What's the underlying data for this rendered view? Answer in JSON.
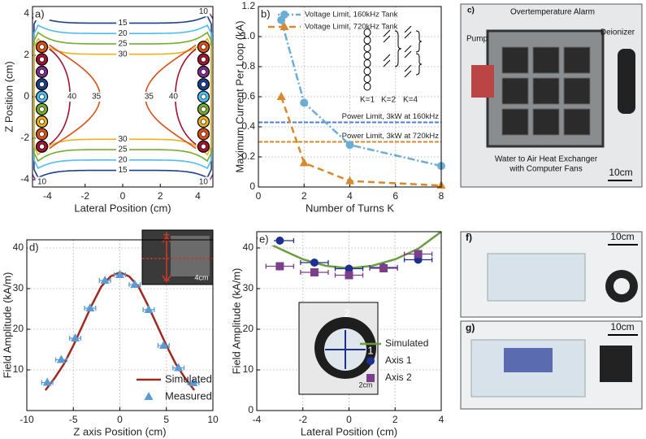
{
  "chart_data": [
    {
      "type": "contour",
      "panel": "a)",
      "xlabel": "Lateral Position (cm)",
      "ylabel": "Z Position (cm)",
      "xlim": [
        -4.8,
        4.8
      ],
      "ylim": [
        -4.35,
        4.35
      ],
      "xticks": [
        -4,
        -2,
        0,
        2,
        4
      ],
      "yticks": [
        -4,
        -2,
        0,
        2,
        4
      ],
      "levels": [
        10,
        15,
        20,
        25,
        30,
        35,
        40
      ],
      "colors": [
        "#7e2f8e",
        "#1d3f8f",
        "#4dbeee",
        "#77ac30",
        "#edb120",
        "#d95319",
        "#a2142f"
      ],
      "grid": false
    },
    {
      "type": "line",
      "panel": "b)",
      "xlabel": "Number of Turns K",
      "ylabel": "Maximum Current Per Loop (kA)",
      "xlim": [
        0,
        8
      ],
      "ylim": [
        0,
        1.2
      ],
      "xticks": [
        0,
        2,
        4,
        6,
        8
      ],
      "yticks": [
        0,
        0.2,
        0.4,
        0.6,
        0.8,
        {
          "value": 1,
          "label": "1.0"
        },
        1.2
      ],
      "grid": true,
      "legend": "upper right",
      "series": [
        {
          "name": "Voltage Limit, 160kHz Tank",
          "color": "#6aaed6",
          "marker": "circle",
          "dash": "dashdot",
          "x": [
            1,
            2,
            4,
            8
          ],
          "values": [
            1.11,
            0.56,
            0.28,
            0.14
          ]
        },
        {
          "name": "Voltage Limit, 720kHz Tank",
          "color": "#d9892b",
          "marker": "triangle",
          "dash": "dashed",
          "x": [
            1,
            2,
            4,
            8
          ],
          "values": [
            0.6,
            0.16,
            0.04,
            0.01
          ]
        }
      ],
      "hlines": [
        {
          "name": "Power Limit, 3kW at 160kHz",
          "value": 0.43,
          "color": "#4a7fd4"
        },
        {
          "name": "Power Limit, 3kW at 720kHz",
          "value": 0.3,
          "color": "#d9892b"
        }
      ],
      "inset_labels": [
        "K=1",
        "K=2",
        "K=4"
      ]
    },
    {
      "type": "line",
      "panel": "d)",
      "xlabel": "Z axis Position (cm)",
      "ylabel": "Field Amplitude (kA/m)",
      "xlim": [
        -10,
        10
      ],
      "ylim": [
        0,
        42
      ],
      "xticks": [
        -10,
        -5,
        0,
        5,
        10
      ],
      "yticks": [
        10,
        20,
        30,
        40
      ],
      "grid": true,
      "legend": "lower right",
      "series": [
        {
          "name": "Simulated",
          "color": "#a0281e",
          "marker": "none",
          "dash": "solid",
          "x": [
            -8,
            -7,
            -6,
            -5,
            -4,
            -3,
            -2,
            -1,
            0,
            1,
            2,
            3,
            4,
            5,
            6,
            7,
            8
          ],
          "values": [
            5,
            8,
            11.5,
            16,
            21,
            26,
            30.5,
            33,
            34,
            33,
            30.5,
            26,
            21,
            16,
            11.5,
            8,
            5
          ]
        },
        {
          "name": "Measured",
          "color": "#5b9bd5",
          "marker": "triangle",
          "dash": "none",
          "x": [
            -7.8,
            -6.3,
            -4.8,
            -3.2,
            -1.6,
            0,
            1.6,
            3.1,
            4.7,
            6.3,
            7.9
          ],
          "values": [
            6.9,
            12.5,
            17.8,
            25.2,
            32,
            33.4,
            31,
            24.8,
            16,
            10.5,
            6.8
          ],
          "xerr": [
            0.6,
            0.6,
            0.6,
            0.6,
            0.6,
            0.6,
            0.6,
            0.6,
            0.6,
            0.6,
            0.6
          ]
        }
      ],
      "inset_labels": [
        "+",
        "−",
        "4cm"
      ]
    },
    {
      "type": "line",
      "panel": "e)",
      "xlabel": "Lateral Position (cm)",
      "ylabel": "Field Amplitude (kA/m)",
      "xlim": [
        -4,
        4
      ],
      "ylim": [
        0,
        44
      ],
      "xticks": [
        -4,
        -2,
        0,
        2,
        4
      ],
      "yticks": [
        0,
        10,
        20,
        30,
        40
      ],
      "grid": true,
      "legend": "center right",
      "series": [
        {
          "name": "Simulated",
          "color": "#6b9e3a",
          "marker": "none",
          "dash": "solid",
          "x": [
            -4,
            -3,
            -2,
            -1,
            0,
            1,
            2,
            3,
            4
          ],
          "values": [
            42.5,
            39.8,
            37.2,
            35.6,
            35,
            35.6,
            37.2,
            39.8,
            44
          ]
        },
        {
          "name": "Axis 1",
          "color": "#1f2f8f",
          "marker": "circle",
          "dash": "none",
          "x": [
            -3,
            -1.5,
            0,
            1.5,
            3
          ],
          "values": [
            41.8,
            36.4,
            34.9,
            35.2,
            37.1
          ],
          "xerr": [
            0.6,
            0.6,
            0.6,
            0.6,
            0.6
          ]
        },
        {
          "name": "Axis 2",
          "color": "#7b3f8c",
          "marker": "square",
          "dash": "none",
          "x": [
            -3,
            -1.5,
            0,
            1.5,
            3
          ],
          "values": [
            35.5,
            34,
            33.3,
            35,
            38.5
          ],
          "xerr": [
            0.6,
            0.6,
            0.6,
            0.6,
            0.6
          ]
        }
      ],
      "inset_labels": [
        "2",
        "1",
        "2cm"
      ]
    }
  ],
  "photos": [
    {
      "panel": "c)",
      "labels": [
        "Overtemperature Alarm",
        "Pump",
        "Deionizer",
        "Water to Air Heat Exchanger",
        "with Computer Fans",
        "10cm"
      ]
    },
    {
      "panel": "f)",
      "labels": [
        "10cm"
      ]
    },
    {
      "panel": "g)",
      "labels": [
        "10cm"
      ]
    }
  ]
}
